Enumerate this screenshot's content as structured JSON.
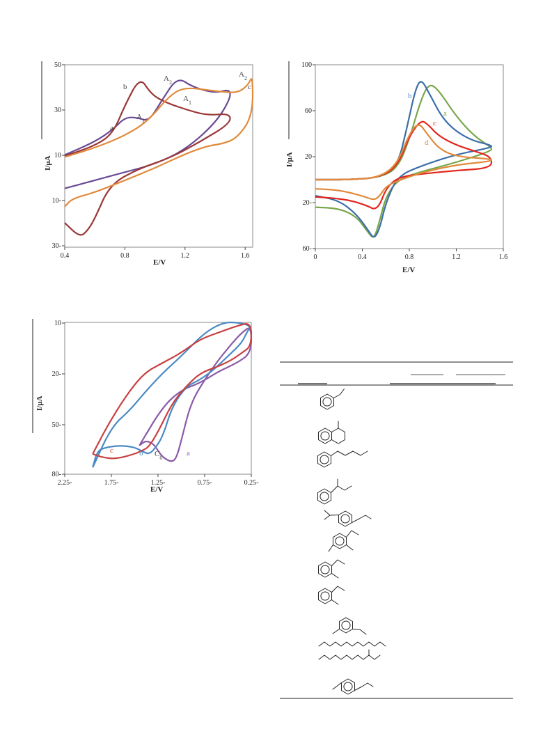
{
  "chart_data": [
    {
      "type": "line",
      "title": "",
      "xlabel": "E/V",
      "ylabel": "I/µA",
      "xlim": [
        0.4,
        1.6
      ],
      "ylim": [
        "30-",
        "50"
      ],
      "x_ticks": [
        "0.4",
        "0.8",
        "1.2",
        "1.6"
      ],
      "y_ticks": [
        "50",
        "30",
        "10",
        "10-",
        "30-"
      ],
      "curve_labels": [
        {
          "text": "a",
          "color": "#444444"
        },
        {
          "text": "b",
          "color": "#444444"
        },
        {
          "text": "c",
          "color": "#444444"
        },
        {
          "text": "A",
          "sub": "1",
          "color": "#444444"
        },
        {
          "text": "A",
          "sub": "2",
          "color": "#444444"
        },
        {
          "text": "A",
          "sub": "1",
          "color": "#444444"
        },
        {
          "text": "A",
          "sub": "2",
          "color": "#444444"
        }
      ],
      "series": [
        {
          "label": "a",
          "color": "#6a4a93",
          "x": [
            0.4,
            0.6,
            0.72,
            0.8,
            0.88,
            0.96,
            1.05,
            1.15,
            1.25,
            1.4,
            1.5,
            1.5,
            1.4,
            1.2,
            1.0,
            0.8,
            0.6,
            0.4
          ],
          "y": [
            5.5,
            12,
            18,
            24,
            24,
            22,
            33,
            44,
            39,
            36,
            38,
            33,
            21,
            8,
            1,
            -3,
            -7,
            -11
          ]
        },
        {
          "label": "b",
          "color": "#9b3838",
          "x": [
            0.4,
            0.6,
            0.72,
            0.8,
            0.9,
            0.97,
            1.05,
            1.2,
            1.35,
            1.5,
            1.5,
            1.3,
            1.1,
            0.9,
            0.7,
            0.6,
            0.55,
            0.5,
            0.4
          ],
          "y": [
            5,
            10,
            16,
            30,
            44,
            36,
            32,
            28,
            25,
            26,
            21,
            12,
            4,
            -1,
            -9,
            -26,
            -32,
            -35,
            -28
          ]
        },
        {
          "label": "c",
          "color": "#e18a3c",
          "x": [
            0.4,
            0.6,
            0.8,
            0.95,
            1.1,
            1.2,
            1.4,
            1.55,
            1.62,
            1.65,
            1.65,
            1.55,
            1.45,
            1.35,
            1.2,
            1.0,
            0.8,
            0.6,
            0.45,
            0.4
          ],
          "y": [
            4.5,
            9,
            15,
            22,
            35,
            39,
            37,
            36,
            40,
            45,
            25,
            14,
            11,
            10,
            6,
            -1,
            -7,
            -13,
            -16,
            -20
          ]
        }
      ]
    },
    {
      "type": "line",
      "title": "",
      "xlabel": "E/V",
      "ylabel": "I/µA",
      "xlim": [
        0,
        1.6
      ],
      "ylim": [
        "60-",
        "100"
      ],
      "x_ticks": [
        "0",
        "0.4",
        "0.8",
        "1.2",
        "1.6"
      ],
      "y_ticks": [
        "100",
        "60",
        "20",
        "20-",
        "60-"
      ],
      "curve_labels": [
        {
          "text": "a",
          "color": "#7aa64a"
        },
        {
          "text": "b",
          "color": "#4a8ac4"
        },
        {
          "text": "c",
          "color": "#e2261e"
        },
        {
          "text": "d",
          "color": "#e18a3c"
        }
      ],
      "series": [
        {
          "label": "a",
          "color": "#7aa64a",
          "x": [
            0,
            0.3,
            0.55,
            0.7,
            0.8,
            0.9,
            0.97,
            1.05,
            1.2,
            1.35,
            1.5,
            1.5,
            1.2,
            0.9,
            0.7,
            0.6,
            0.55,
            0.5,
            0.45,
            0.35,
            0.2,
            0
          ],
          "y": [
            0,
            0,
            2,
            10,
            35,
            70,
            84,
            78,
            55,
            38,
            28,
            25,
            15,
            7,
            0,
            -15,
            -35,
            -52,
            -46,
            -32,
            -25,
            -24
          ]
        },
        {
          "label": "b",
          "color": "#3c6fa8",
          "x": [
            0,
            0.3,
            0.55,
            0.7,
            0.78,
            0.85,
            0.9,
            0.97,
            1.1,
            1.3,
            1.5,
            1.5,
            1.2,
            0.9,
            0.7,
            0.6,
            0.55,
            0.5,
            0.45,
            0.35,
            0.2,
            0
          ],
          "y": [
            0,
            0,
            2,
            12,
            45,
            78,
            88,
            75,
            50,
            35,
            30,
            28,
            22,
            12,
            3,
            -20,
            -42,
            -52,
            -44,
            -30,
            -18,
            -14
          ]
        },
        {
          "label": "c",
          "color": "#e2261e",
          "x": [
            0,
            0.3,
            0.55,
            0.7,
            0.8,
            0.9,
            0.96,
            1.05,
            1.2,
            1.35,
            1.5,
            1.5,
            1.2,
            0.9,
            0.7,
            0.6,
            0.55,
            0.5,
            0.45,
            0.3,
            0.15,
            0
          ],
          "y": [
            0,
            0,
            2,
            12,
            38,
            52,
            48,
            38,
            30,
            25,
            20,
            10,
            8,
            5,
            2,
            -8,
            -22,
            -26,
            -23,
            -18,
            -16,
            -15
          ]
        },
        {
          "label": "d",
          "color": "#e18a3c",
          "x": [
            0,
            0.3,
            0.55,
            0.7,
            0.8,
            0.88,
            0.95,
            1.05,
            1.2,
            1.5,
            1.5,
            1.2,
            0.9,
            0.7,
            0.6,
            0.55,
            0.5,
            0.4,
            0.2,
            0
          ],
          "y": [
            0,
            0,
            2,
            14,
            40,
            50,
            40,
            27,
            20,
            18,
            16,
            13,
            6,
            -1,
            -6,
            -14,
            -18,
            -14,
            -9,
            -8
          ]
        }
      ]
    },
    {
      "type": "line",
      "title": "",
      "xlabel": "E/V",
      "ylabel": "I/µA",
      "xlim": [
        "2.25-",
        "0.25-"
      ],
      "ylim": [
        "80-",
        "10"
      ],
      "x_ticks": [
        "2.25-",
        "1.75-",
        "1.25-",
        "0.75-",
        "0.25-"
      ],
      "y_ticks": [
        "10",
        "20-",
        "50-",
        "80-"
      ],
      "curve_labels": [
        {
          "text": "a",
          "color": "#8a5aa8"
        },
        {
          "text": "b",
          "color": "#4a8ac4"
        },
        {
          "text": "c",
          "color": "#c84040"
        },
        {
          "text": "C",
          "sub": "0",
          "color": "#444444"
        }
      ],
      "series": [
        {
          "label": "a",
          "color": "#8a5aa8",
          "x": [
            -1.45,
            -1.38,
            -1.3,
            -1.25,
            -1.2,
            -1.1,
            -1.05,
            -1.0,
            -0.9,
            -0.75,
            -0.6,
            -0.45,
            -0.35,
            -0.25,
            -0.25,
            -0.4,
            -0.6,
            -0.8,
            -1.0,
            -1.2,
            -1.45
          ],
          "y": [
            -63,
            -60,
            -62,
            -66,
            -70,
            -73,
            -70,
            -60,
            -38,
            -24,
            -12,
            -2,
            4,
            8,
            -8,
            -14,
            -19,
            -26,
            -30,
            -40,
            -63
          ]
        },
        {
          "label": "b",
          "color": "#4a8ac4",
          "x": [
            -1.95,
            -1.9,
            -1.8,
            -1.65,
            -1.5,
            -1.4,
            -1.35,
            -1.3,
            -1.2,
            -1.1,
            -0.95,
            -0.8,
            -0.65,
            -0.5,
            -0.35,
            -0.3,
            -0.25,
            -0.4,
            -0.55,
            -0.75,
            -1.0,
            -1.2,
            -1.4,
            -1.55,
            -1.75,
            -1.95
          ],
          "y": [
            -76,
            -66,
            -64,
            -63,
            -64,
            -67,
            -68,
            -66,
            -58,
            -40,
            -28,
            -24,
            -18,
            -10,
            -2,
            4,
            8,
            10,
            10,
            4,
            -10,
            -20,
            -32,
            -42,
            -52,
            -76
          ]
        },
        {
          "label": "c",
          "color": "#c84040",
          "x": [
            -1.95,
            -1.85,
            -1.7,
            -1.5,
            -1.42,
            -1.35,
            -1.25,
            -1.1,
            -0.95,
            -0.8,
            -0.6,
            -0.45,
            -0.35,
            -0.25,
            -0.25,
            -0.4,
            -0.6,
            -0.8,
            -1.0,
            -1.2,
            -1.4,
            -1.6,
            -1.8,
            -1.95
          ],
          "y": [
            -68,
            -70,
            -71,
            -68,
            -66,
            -64,
            -55,
            -38,
            -28,
            -20,
            -16,
            -12,
            -8,
            -4,
            10,
            8,
            4,
            0,
            -8,
            -14,
            -20,
            -34,
            -52,
            -68
          ]
        }
      ]
    }
  ],
  "table": {
    "compounds": [
      {
        "structure": "ethylbenzene-icon"
      },
      {
        "structure": "methyltetralin-icon"
      },
      {
        "structure": "butenylbenzene-icon"
      },
      {
        "structure": "sec-butylbenzene-icon"
      },
      {
        "structure": "isopropyl-ethylbenzene-icon"
      },
      {
        "structure": "dimethyl-ethylbenzene-icon"
      },
      {
        "structure": "methyl-ethylbenzene-icon"
      },
      {
        "structure": "methyl-ethylbenzene-icon"
      },
      {
        "structure": "meta-methyl-ethylbenzene-icon"
      },
      {
        "structure": "decane-icon"
      },
      {
        "structure": "methyldecane-icon"
      },
      {
        "structure": "para-methyl-ethylbenzene-icon"
      }
    ]
  }
}
